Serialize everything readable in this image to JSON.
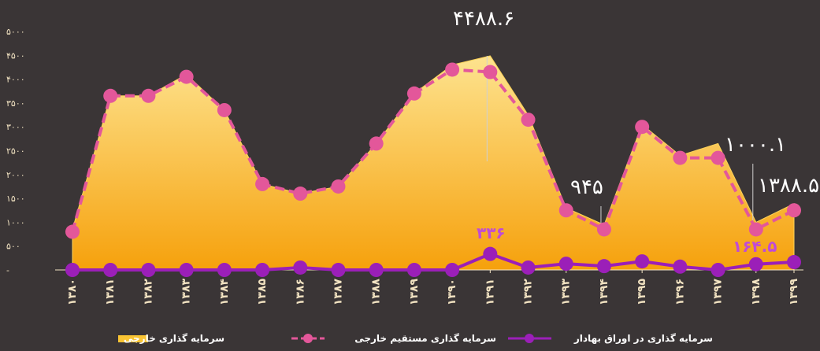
{
  "chart_data": {
    "type": "line",
    "title": "",
    "xlabel": "",
    "ylabel": "",
    "ylim": [
      0,
      5000
    ],
    "y_ticks": [
      "۵۰۰۰",
      "۴۵۰۰",
      "۴۰۰۰",
      "۳۵۰۰",
      "۳۰۰۰",
      "۲۵۰۰",
      "۲۰۰۰",
      "۱۵۰۰",
      "۱۰۰۰",
      "۵۰۰",
      "-"
    ],
    "categories": [
      "۱۳۸۰",
      "۱۳۸۱",
      "۱۳۸۲",
      "۱۳۸۳",
      "۱۳۸۴",
      "۱۳۸۵",
      "۱۳۸۶",
      "۱۳۸۷",
      "۱۳۸۸",
      "۱۳۸۹",
      "۱۳۹۰",
      "۱۳۹۱",
      "۱۳۹۲",
      "۱۳۹۳",
      "۱۳۹۴",
      "۱۳۹۵",
      "۱۳۹۶",
      "۱۳۹۷",
      "۱۳۹۸",
      "۱۳۹۹"
    ],
    "series": [
      {
        "name": "سرمایه گذاری خارجی",
        "kind": "area",
        "color": "#f9c433",
        "values": [
          850,
          3650,
          3650,
          4100,
          3350,
          1800,
          1600,
          1750,
          2650,
          3700,
          4300,
          4488.6,
          3250,
          1300,
          945,
          3050,
          2400,
          2650,
          1000.1,
          1388.5
        ]
      },
      {
        "name": "سرمایه گذاری مستقیم خارجی",
        "kind": "dashed-line",
        "color": "#e3579a",
        "values": [
          800,
          3650,
          3650,
          4050,
          3350,
          1800,
          1600,
          1750,
          2650,
          3700,
          4200,
          4150,
          3150,
          1250,
          850,
          3000,
          2350,
          2350,
          850,
          1250
        ]
      },
      {
        "name": "سرمایه گذاری در اوراق بهادار",
        "kind": "line",
        "color": "#9b1fb8",
        "values": [
          0,
          0,
          0,
          0,
          0,
          0,
          50,
          0,
          0,
          0,
          0,
          336,
          50,
          130,
          80,
          180,
          70,
          0,
          120,
          164.5
        ]
      }
    ],
    "annotations": [
      {
        "text": "۴۴۸۸.۶",
        "category_index": 11,
        "value": 4488.6,
        "style": "white"
      },
      {
        "text": "۹۴۵",
        "category_index": 14,
        "value": 945,
        "style": "white"
      },
      {
        "text": "۱۰۰۰.۱",
        "category_index": 18,
        "value": 1000.1,
        "style": "white"
      },
      {
        "text": "۱۳۸۸.۵",
        "category_index": 19,
        "value": 1388.5,
        "style": "white"
      },
      {
        "text": "۳۳۶",
        "category_index": 11,
        "value": 336,
        "style": "purple"
      },
      {
        "text": "۱۶۴.۵",
        "category_index": 18,
        "value": 164.5,
        "style": "purple"
      }
    ],
    "legend_position": "bottom",
    "grid": false
  },
  "colors": {
    "background": "#3a3536",
    "area_top": "#fde08a",
    "area_bottom": "#f5a10a"
  }
}
